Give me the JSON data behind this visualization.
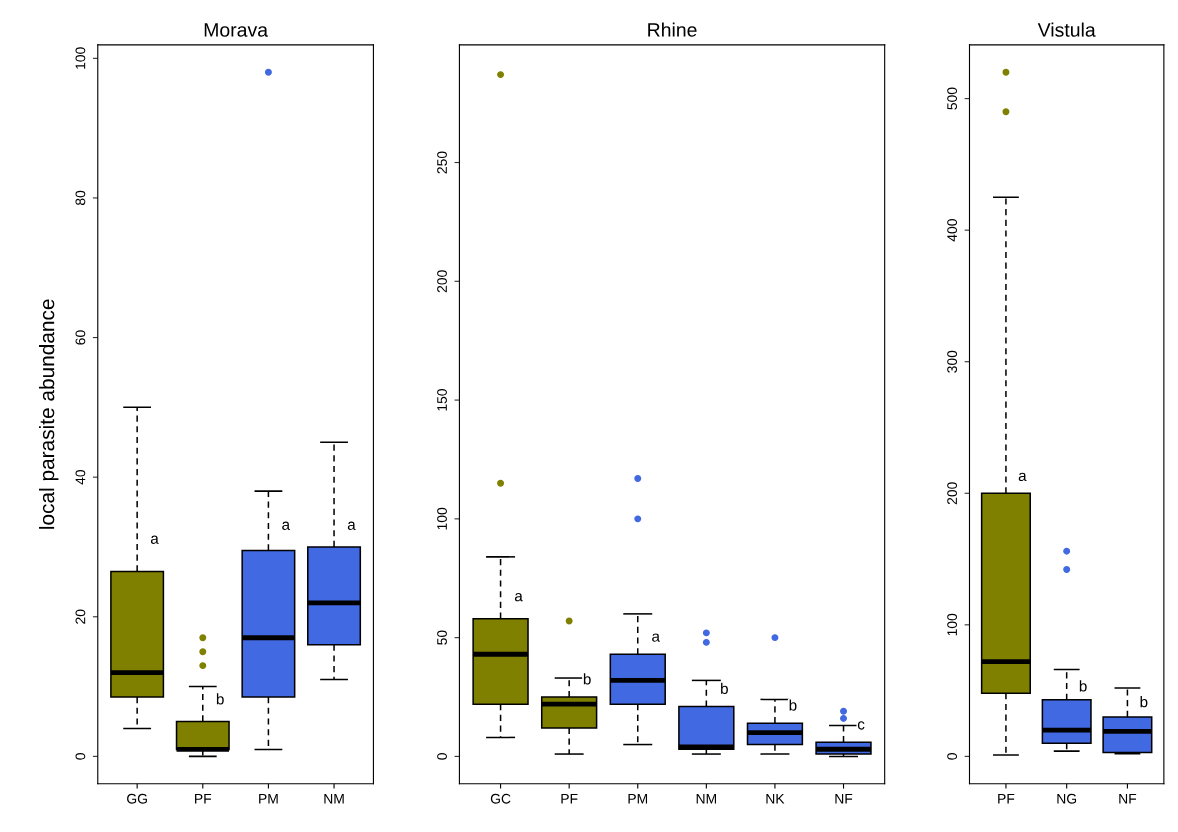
{
  "chart_data": [
    {
      "type": "box",
      "title": "Morava",
      "ylabel": "local parasite abundance",
      "categories": [
        "GG",
        "PF",
        "PM",
        "NM"
      ],
      "colors": [
        "#808000",
        "#808000",
        "#4169e1",
        "#4169e1"
      ],
      "ylim": [
        -3.92,
        101.92
      ],
      "yticks": [
        0,
        20,
        40,
        60,
        80,
        100
      ],
      "grid": false,
      "boxes": [
        {
          "low": 4,
          "q1": 8.5,
          "median": 12,
          "q3": 26.5,
          "high": 50
        },
        {
          "low": 0,
          "q1": 1,
          "median": 1,
          "q3": 5,
          "high": 10,
          "outliers": [
            13,
            15,
            17
          ]
        },
        {
          "low": 1,
          "q1": 8.5,
          "median": 17,
          "q3": 29.5,
          "high": 38,
          "outliers": [
            98
          ]
        },
        {
          "low": 11,
          "q1": 16,
          "median": 22,
          "q3": 30,
          "high": 45
        }
      ],
      "annotations": [
        {
          "text": "a",
          "x": "GG",
          "y": 30
        },
        {
          "text": "b",
          "x": "PF",
          "y": 7
        },
        {
          "text": "a",
          "x": "PM",
          "y": 32
        },
        {
          "text": "a",
          "x": "NM",
          "y": 32
        }
      ]
    },
    {
      "type": "box",
      "title": "Rhine",
      "categories": [
        "GC",
        "PF",
        "PM",
        "NM",
        "NK",
        "NF"
      ],
      "colors": [
        "#808000",
        "#808000",
        "#4169e1",
        "#4169e1",
        "#4169e1",
        "#4169e1"
      ],
      "ylim": [
        -11.5,
        299.5
      ],
      "yticks": [
        0,
        50,
        100,
        150,
        200,
        250
      ],
      "grid": false,
      "boxes": [
        {
          "low": 8,
          "q1": 22,
          "median": 43,
          "q3": 58,
          "high": 84,
          "outliers": [
            115,
            287
          ]
        },
        {
          "low": 1,
          "q1": 12,
          "median": 22,
          "q3": 25,
          "high": 33,
          "outliers": [
            57
          ]
        },
        {
          "low": 5,
          "q1": 22,
          "median": 32,
          "q3": 43,
          "high": 60,
          "outliers": [
            100,
            117
          ]
        },
        {
          "low": 1,
          "q1": 3,
          "median": 4,
          "q3": 21,
          "high": 32,
          "outliers": [
            48,
            52
          ]
        },
        {
          "low": 1,
          "q1": 5,
          "median": 10,
          "q3": 14,
          "high": 24,
          "outliers": [
            50
          ]
        },
        {
          "low": 0,
          "q1": 1,
          "median": 3,
          "q3": 6,
          "high": 13,
          "outliers": [
            16,
            19
          ]
        }
      ],
      "annotations": [
        {
          "text": "a",
          "x": "GC",
          "y": 64
        },
        {
          "text": "b",
          "x": "PF",
          "y": 29
        },
        {
          "text": "a",
          "x": "PM",
          "y": 47
        },
        {
          "text": "b",
          "x": "NM",
          "y": 25
        },
        {
          "text": "b",
          "x": "NK",
          "y": 18
        },
        {
          "text": "c",
          "x": "NF",
          "y": 10
        }
      ]
    },
    {
      "type": "box",
      "title": "Vistula",
      "categories": [
        "PF",
        "NG",
        "NF"
      ],
      "colors": [
        "#808000",
        "#4169e1",
        "#4169e1"
      ],
      "ylim": [
        -20.8,
        540.8
      ],
      "yticks": [
        0,
        100,
        200,
        300,
        400,
        500
      ],
      "grid": false,
      "boxes": [
        {
          "low": 1,
          "q1": 48,
          "median": 72,
          "q3": 200,
          "high": 425,
          "outliers": [
            490,
            520
          ]
        },
        {
          "low": 4,
          "q1": 10,
          "median": 20,
          "q3": 43,
          "high": 66,
          "outliers": [
            142,
            156
          ]
        },
        {
          "low": 2,
          "q1": 3,
          "median": 19,
          "q3": 30,
          "high": 52
        }
      ],
      "annotations": [
        {
          "text": "a",
          "x": "PF",
          "y": 207
        },
        {
          "text": "b",
          "x": "NG",
          "y": 47
        },
        {
          "text": "b",
          "x": "NF",
          "y": 35
        }
      ]
    }
  ]
}
